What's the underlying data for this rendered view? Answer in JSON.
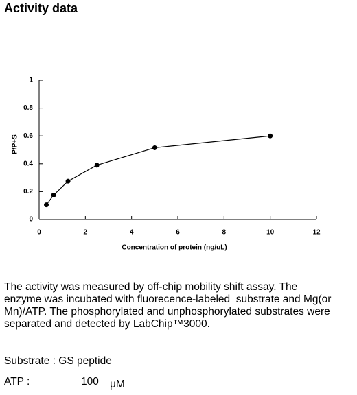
{
  "header": {
    "title": "Activity data"
  },
  "chart_data": {
    "type": "line",
    "ylabel": "P/P+S",
    "xlabel": "Concentration of protein (ng/uL)",
    "x": [
      0.3125,
      0.625,
      1.25,
      2.5,
      5,
      10
    ],
    "series": [
      {
        "color": "#000000",
        "values": [
          0.105,
          0.175,
          0.275,
          0.39,
          0.515,
          0.6
        ]
      }
    ],
    "xlim": [
      0,
      12
    ],
    "xticks": [
      0,
      2,
      4,
      6,
      8,
      10,
      12
    ],
    "ylim": [
      0,
      1
    ],
    "yticks": [
      0,
      0.2,
      0.4,
      0.6,
      0.8,
      1
    ],
    "grid": false
  },
  "description": [
    "The activity was measured by off-chip mobility shift assay. The",
    "enzyme was incubated with fluorecence-labeled  substrate and Mg(or",
    "Mn)/ATP. The phosphorylated and unphosphorylated substrates were",
    "separated and detected by LabChip™3000."
  ],
  "substrate": "Substrate : GS peptide",
  "atp": {
    "label": "ATP :",
    "amount": "100",
    "unit": "μM"
  }
}
